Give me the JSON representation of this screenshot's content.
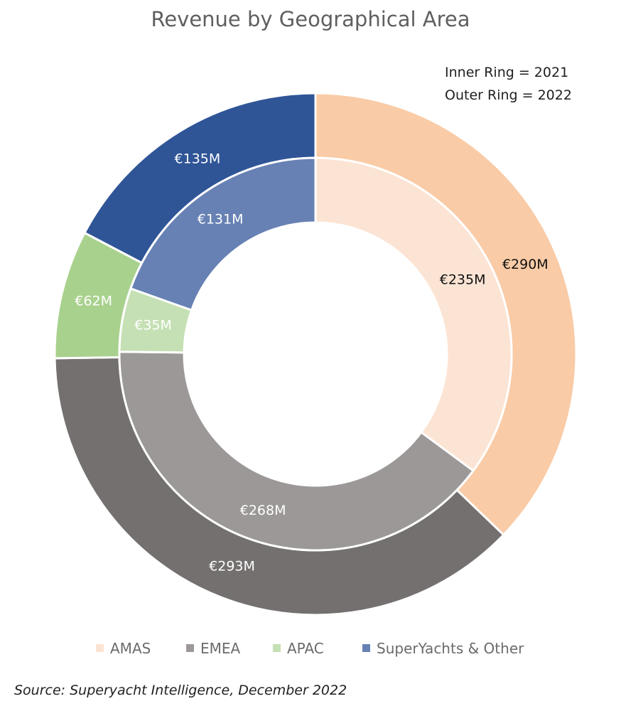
{
  "chart_data": {
    "type": "pie",
    "subtype": "nested-donut",
    "title": "Revenue by Geographical Area",
    "notes": [
      "Inner Ring = 2021",
      "Outer Ring = 2022"
    ],
    "source": "Source: Superyacht Intelligence, December 2022",
    "legend_position": "bottom",
    "categories": [
      "AMAS",
      "EMEA",
      "APAC",
      "SuperYachts & Other"
    ],
    "series": [
      {
        "name": "2021",
        "ring": "inner",
        "values": [
          235,
          268,
          35,
          131
        ],
        "labels": [
          "€235M",
          "€268M",
          "€35M",
          "€131M"
        ]
      },
      {
        "name": "2022",
        "ring": "outer",
        "values": [
          290,
          293,
          62,
          135
        ],
        "labels": [
          "€290M",
          "€293M",
          "€62M",
          "€135M"
        ]
      }
    ],
    "colors": {
      "inner": [
        "#fce4d4",
        "#9b9897",
        "#c5e0b4",
        "#6781b4"
      ],
      "outer": [
        "#f9cba6",
        "#747070",
        "#a9d18e",
        "#2f5597"
      ],
      "legend": [
        "#fce4d4",
        "#9b9897",
        "#c5e0b4",
        "#6781b4"
      ],
      "label_dark": "#111111",
      "label_light": "#ffffff"
    },
    "label_style": {
      "inner": [
        "dark",
        "light",
        "light",
        "light"
      ],
      "outer": [
        "dark",
        "light",
        "light",
        "light"
      ]
    }
  }
}
